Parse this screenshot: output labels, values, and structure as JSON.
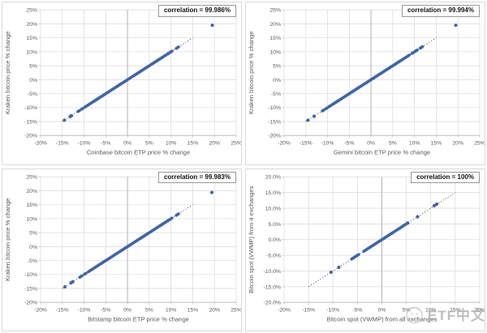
{
  "style": {
    "point_color": "#4065A8",
    "grid_color": "#D9D9D9",
    "axis_color": "#BFBFBF",
    "zero_axis_color": "#ADADAD",
    "text_color": "#595959",
    "trend_color": "#3F3F3F",
    "badge_border_color": "#999999"
  },
  "watermark": {
    "text": "ETF中文",
    "logo": "mascot-sketch-logo"
  },
  "chart_data": [
    {
      "id": "kraken-vs-coinbase",
      "type": "scatter",
      "correlation_label": "correlation = 99.986%",
      "xlabel": "Coinbase bitcoin ETP price % change",
      "ylabel": "Kraken bitcoin price % change",
      "xlim": [
        -20,
        25
      ],
      "ylim": [
        -20,
        25
      ],
      "xtick_values": [
        -20,
        -15,
        -10,
        -5,
        0,
        5,
        10,
        15,
        20,
        25
      ],
      "xtick_labels": [
        "-20%",
        "-15%",
        "-10%",
        "-5%",
        "0%",
        "5%",
        "10%",
        "15%",
        "20%",
        "25%"
      ],
      "ytick_values": [
        25,
        20,
        15,
        10,
        5,
        0,
        -5,
        -10,
        -15,
        -20
      ],
      "ytick_labels": [
        "25%",
        "20%",
        "15%",
        "10%",
        "5%",
        "0%",
        "-5%",
        "-10%",
        "-15%",
        "-20%"
      ],
      "trendline": {
        "x1": -15,
        "y1": -15,
        "x2": 15,
        "y2": 15,
        "style": "dotted"
      },
      "dense_segments": [
        [
          -11.4,
          -11.0
        ],
        [
          -10.6,
          -10.1
        ],
        [
          -9.3,
          9.0
        ],
        [
          9.7,
          10.4
        ],
        [
          11.2,
          11.9
        ]
      ],
      "points": [
        [
          -14.5,
          -14.5
        ],
        [
          -13.2,
          -13.2
        ],
        [
          -12.9,
          -12.9
        ],
        [
          -9.7,
          -9.7
        ],
        [
          9.3,
          9.3
        ],
        [
          19.5,
          19.5
        ]
      ],
      "legend": "none",
      "grid": true
    },
    {
      "id": "kraken-vs-gemini",
      "type": "scatter",
      "correlation_label": "correlation = 99.994%",
      "xlabel": "Gemini bitcoin ETP price % change",
      "ylabel": "Kraken bitcoin price % change",
      "xlim": [
        -20,
        25
      ],
      "ylim": [
        -20,
        25
      ],
      "xtick_values": [
        -20,
        -15,
        -10,
        -5,
        0,
        5,
        10,
        15,
        20,
        25
      ],
      "xtick_labels": [
        "-20%",
        "-15%",
        "-10%",
        "-5%",
        "0%",
        "5%",
        "10%",
        "15%",
        "20%",
        "25%"
      ],
      "ytick_values": [
        25,
        20,
        15,
        10,
        5,
        0,
        -5,
        -10,
        -15,
        -20
      ],
      "ytick_labels": [
        "25%",
        "20%",
        "15%",
        "10%",
        "5%",
        "0%",
        "-5%",
        "-10%",
        "-15%",
        "-20%"
      ],
      "trendline": {
        "x1": -15,
        "y1": -15,
        "x2": 15,
        "y2": 15,
        "style": "dotted"
      },
      "dense_segments": [
        [
          -11.2,
          -10.8
        ],
        [
          -10.4,
          -10.0
        ],
        [
          -9.2,
          8.9
        ],
        [
          9.4,
          9.9
        ],
        [
          10.1,
          10.7
        ],
        [
          11.3,
          11.9
        ]
      ],
      "points": [
        [
          -14.5,
          -14.5
        ],
        [
          -13.1,
          -13.1
        ],
        [
          -9.6,
          -9.6
        ],
        [
          19.5,
          19.5
        ]
      ],
      "legend": "none",
      "grid": true
    },
    {
      "id": "kraken-vs-bitstamp",
      "type": "scatter",
      "correlation_label": "correlation = 99.983%",
      "xlabel": "Bitstamp bitcoin ETP price % change",
      "ylabel": "Kraken bitcoin price % change",
      "xlim": [
        -20,
        25
      ],
      "ylim": [
        -20,
        25
      ],
      "xtick_values": [
        -20,
        -15,
        -10,
        -5,
        0,
        5,
        10,
        15,
        20,
        25
      ],
      "xtick_labels": [
        "-20%",
        "-15%",
        "-10%",
        "-5%",
        "0%",
        "5%",
        "10%",
        "15%",
        "20%",
        "25%"
      ],
      "ytick_values": [
        25,
        20,
        15,
        10,
        5,
        0,
        -5,
        -10,
        -15,
        -20
      ],
      "ytick_labels": [
        "25%",
        "20%",
        "15%",
        "10%",
        "5%",
        "0%",
        "-5%",
        "-10%",
        "-15%",
        "-20%"
      ],
      "trendline": {
        "x1": -15,
        "y1": -15,
        "x2": 15,
        "y2": 15,
        "style": "dotted"
      },
      "dense_segments": [
        [
          -11.0,
          -10.4
        ],
        [
          -9.9,
          -9.5
        ],
        [
          -9.0,
          8.9
        ],
        [
          9.5,
          10.3
        ],
        [
          11.2,
          11.8
        ]
      ],
      "points": [
        [
          -14.4,
          -14.4
        ],
        [
          -13.0,
          -13.0
        ],
        [
          -12.6,
          -12.6
        ],
        [
          9.2,
          9.2
        ],
        [
          19.4,
          19.4
        ]
      ],
      "legend": "none",
      "grid": true
    },
    {
      "id": "vwmp-4-vs-all-exchanges",
      "type": "scatter",
      "correlation_label": "correlation = 100%",
      "xlabel": "Bitcoin spot (VWMP) from all exchanges",
      "ylabel": "Bitcoin spot (VWMP) from 4 exchanges",
      "xlim": [
        -20,
        20
      ],
      "ylim": [
        -20,
        20
      ],
      "xtick_values": [
        -20,
        -15,
        -10,
        -5,
        0,
        5,
        10,
        15,
        20
      ],
      "xtick_labels": [
        "-20%",
        "-15%",
        "-10%",
        "-5%",
        "0%",
        "5%",
        "10%",
        "15%",
        "20%"
      ],
      "ytick_values": [
        20,
        15,
        10,
        5,
        0,
        -5,
        -10,
        -15,
        -20
      ],
      "ytick_labels": [
        "20.0%",
        "15.0%",
        "10.0%",
        "5.0%",
        "0.0%",
        "-5.0%",
        "-10.0%",
        "-15.0%",
        "-20.0%"
      ],
      "trendline": {
        "x1": -15,
        "y1": -15,
        "x2": 15,
        "y2": 15,
        "style": "dotted"
      },
      "dense_segments": [
        [
          -6.2,
          -4.6
        ],
        [
          -3.7,
          5.0
        ]
      ],
      "points": [
        [
          -10.4,
          -10.4
        ],
        [
          -8.8,
          -8.8
        ],
        [
          5.3,
          5.3
        ],
        [
          7.3,
          7.3
        ],
        [
          10.7,
          10.8
        ],
        [
          11.2,
          11.3
        ]
      ],
      "legend": "none",
      "grid": true
    }
  ]
}
